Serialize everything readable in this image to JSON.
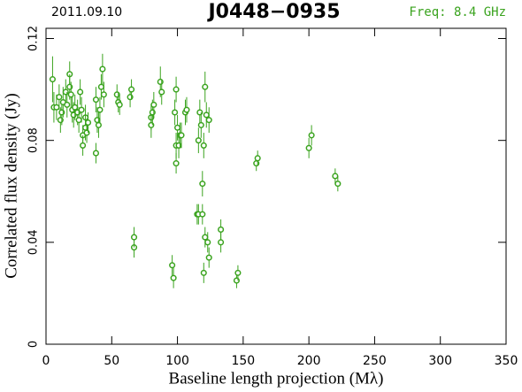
{
  "chart_data": {
    "type": "scatter",
    "title": "J0448−0935",
    "date": "2011.09.10",
    "annotation": "Freq: 8.4 GHz",
    "xlabel": "Baseline length projection (Mλ)",
    "ylabel": "Correlated flux density (Jy)",
    "color": "#3aa31e",
    "xlim": [
      0,
      350
    ],
    "ylim": [
      0,
      0.124
    ],
    "xticks": [
      0,
      50,
      100,
      150,
      200,
      250,
      300,
      350
    ],
    "yticks": [
      0,
      0.04,
      0.08,
      0.12
    ],
    "x": [
      5,
      6,
      8,
      10,
      11,
      12,
      13,
      15,
      16,
      18,
      18,
      19,
      20,
      21,
      22,
      24,
      25,
      26,
      27,
      28,
      28,
      30,
      30,
      31,
      32,
      38,
      38,
      39,
      40,
      41,
      42,
      43,
      44,
      54,
      55,
      56,
      64,
      65,
      67,
      67,
      80,
      80,
      81,
      82,
      87,
      88,
      96,
      97,
      98,
      99,
      99,
      99,
      100,
      101,
      102,
      103,
      106,
      107,
      115,
      116,
      116,
      117,
      118,
      119,
      119,
      120,
      120,
      121,
      121,
      122,
      123,
      124,
      124,
      133,
      133,
      145,
      146,
      160,
      161,
      200,
      202,
      220,
      222
    ],
    "values": [
      0.104,
      0.093,
      0.093,
      0.097,
      0.088,
      0.091,
      0.095,
      0.099,
      0.094,
      0.106,
      0.101,
      0.098,
      0.092,
      0.09,
      0.093,
      0.091,
      0.088,
      0.099,
      0.092,
      0.082,
      0.078,
      0.089,
      0.085,
      0.083,
      0.087,
      0.075,
      0.096,
      0.088,
      0.086,
      0.092,
      0.101,
      0.108,
      0.098,
      0.098,
      0.095,
      0.094,
      0.097,
      0.1,
      0.038,
      0.042,
      0.089,
      0.086,
      0.091,
      0.094,
      0.103,
      0.099,
      0.031,
      0.026,
      0.091,
      0.1,
      0.078,
      0.071,
      0.085,
      0.078,
      0.082,
      0.082,
      0.091,
      0.092,
      0.051,
      0.08,
      0.051,
      0.091,
      0.086,
      0.051,
      0.063,
      0.078,
      0.028,
      0.101,
      0.042,
      0.09,
      0.04,
      0.034,
      0.088,
      0.04,
      0.045,
      0.025,
      0.028,
      0.071,
      0.073,
      0.077,
      0.082,
      0.066,
      0.063
    ],
    "errors": [
      0.009,
      0.006,
      0.005,
      0.005,
      0.005,
      0.005,
      0.006,
      0.005,
      0.005,
      0.005,
      0.005,
      0.005,
      0.005,
      0.005,
      0.005,
      0.005,
      0.005,
      0.005,
      0.005,
      0.004,
      0.004,
      0.005,
      0.005,
      0.004,
      0.004,
      0.004,
      0.005,
      0.005,
      0.005,
      0.005,
      0.005,
      0.006,
      0.005,
      0.004,
      0.004,
      0.004,
      0.004,
      0.004,
      0.004,
      0.004,
      0.005,
      0.005,
      0.005,
      0.005,
      0.006,
      0.005,
      0.004,
      0.004,
      0.005,
      0.005,
      0.005,
      0.004,
      0.005,
      0.005,
      0.005,
      0.005,
      0.005,
      0.005,
      0.004,
      0.005,
      0.004,
      0.005,
      0.005,
      0.004,
      0.005,
      0.005,
      0.004,
      0.006,
      0.004,
      0.005,
      0.004,
      0.004,
      0.005,
      0.004,
      0.004,
      0.003,
      0.003,
      0.003,
      0.003,
      0.004,
      0.004,
      0.003,
      0.003
    ]
  }
}
